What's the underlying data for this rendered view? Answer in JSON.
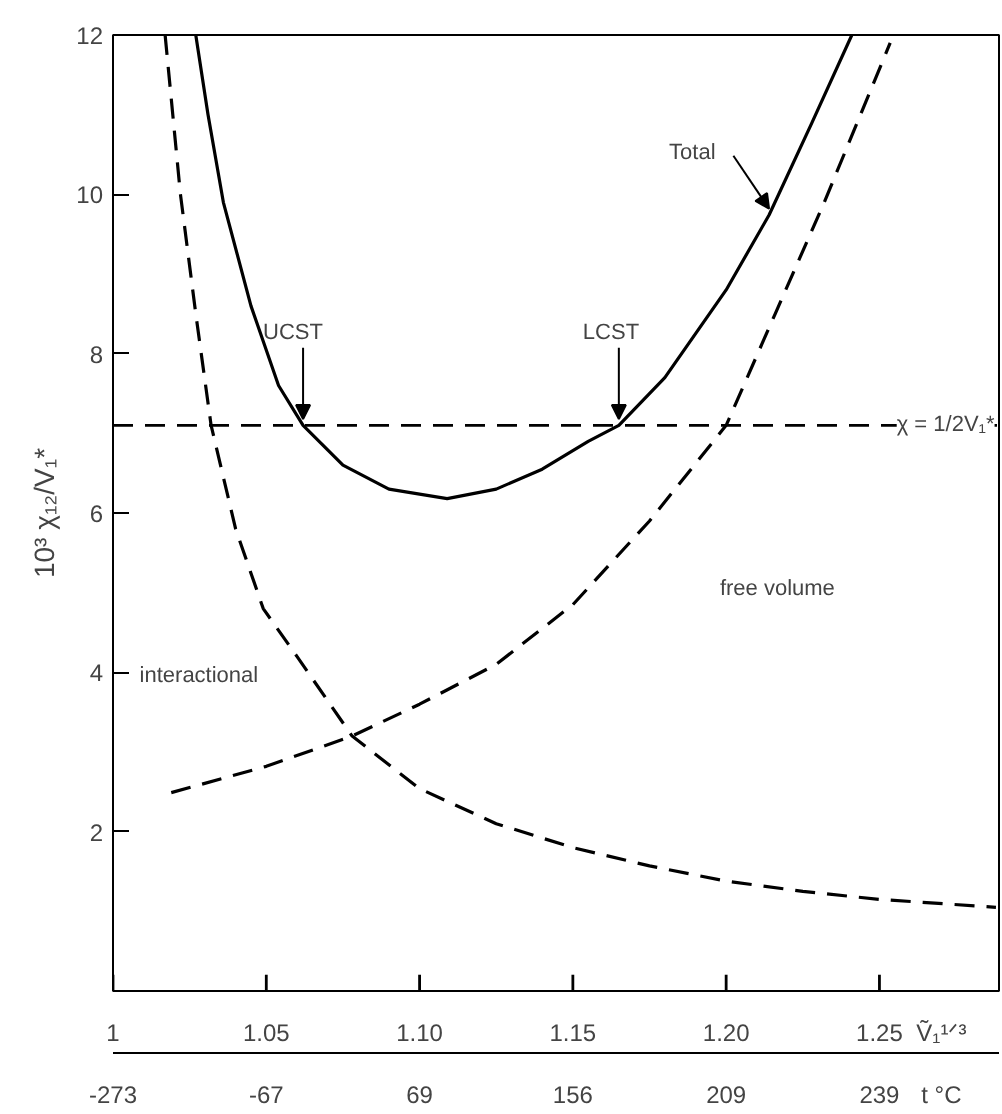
{
  "chart_data": {
    "type": "line",
    "ylabel": "10³ χ₁₂/V₁*",
    "xlabel": "Ṽ₁¹ᐟ³",
    "x2label": "t °C",
    "xlim": [
      1,
      1.289
    ],
    "ylim": [
      0,
      12
    ],
    "xticks": [
      1,
      {
        "value": 1.05,
        "label": "1.05"
      },
      {
        "value": 1.1,
        "label": "1.10"
      },
      {
        "value": 1.15,
        "label": "1.15"
      },
      {
        "value": 1.2,
        "label": "1.20"
      },
      {
        "value": 1.25,
        "label": "1.25"
      }
    ],
    "yticks": [
      2,
      4,
      6,
      8,
      10,
      12
    ],
    "grid": false,
    "series": [
      {
        "color": "#000000",
        "line_style": "solid",
        "x": [
          1.027,
          1.031,
          1.036,
          1.045,
          1.054,
          1.062,
          1.075,
          1.09,
          1.109,
          1.125,
          1.14,
          1.155,
          1.165,
          1.18,
          1.2,
          1.214,
          1.228,
          1.241
        ],
        "values": [
          12,
          11,
          9.9,
          8.6,
          7.6,
          7.1,
          6.6,
          6.3,
          6.18,
          6.3,
          6.55,
          6.9,
          7.1,
          7.7,
          8.8,
          9.74,
          10.9,
          12
        ]
      },
      {
        "color": "#000000",
        "line_style": "dashed",
        "x": [
          1.017,
          1.022,
          1.027,
          1.032,
          1.04,
          1.049,
          1.06,
          1.078,
          1.1,
          1.125,
          1.15,
          1.175,
          1.2,
          1.225,
          1.25,
          1.288
        ],
        "values": [
          12,
          10,
          8.5,
          7.1,
          5.8,
          4.8,
          4.2,
          3.2,
          2.54,
          2.1,
          1.8,
          1.57,
          1.38,
          1.25,
          1.15,
          1.05
        ]
      },
      {
        "color": "#000000",
        "line_style": "dashed",
        "x": [
          1.019,
          1.05,
          1.078,
          1.1,
          1.125,
          1.15,
          1.175,
          1.2,
          1.216,
          1.232,
          1.2535
        ],
        "values": [
          2.49,
          2.82,
          3.2,
          3.6,
          4.1,
          4.85,
          5.9,
          7.1,
          8.5,
          9.9,
          11.9
        ]
      }
    ],
    "ref_lines": [
      {
        "axis": "y",
        "value": 7.1,
        "line_style": "dashed",
        "color": "#000000"
      }
    ],
    "annotations": [
      {
        "text": "Total",
        "x": 1.214,
        "y": 9.74
      },
      {
        "text": "UCST",
        "x": 1.062,
        "y": 7.1
      },
      {
        "text": "LCST",
        "x": 1.165,
        "y": 7.1
      },
      "free volume",
      "interactional",
      "χ = 1/2V₁*",
      "-273",
      "-67",
      "69",
      "156",
      "209",
      "239"
    ]
  }
}
